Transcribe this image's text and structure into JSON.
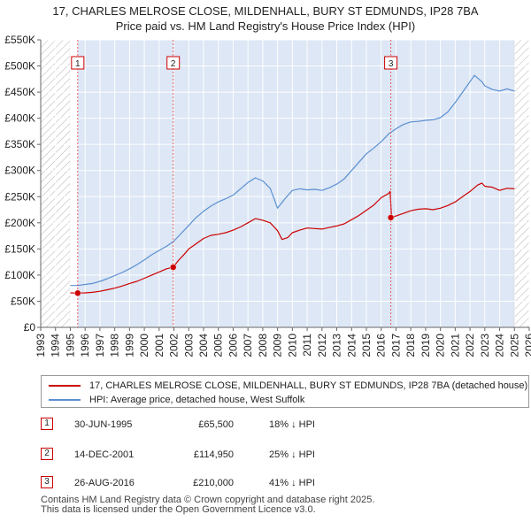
{
  "title": {
    "line1": "17, CHARLES MELROSE CLOSE, MILDENHALL, BURY ST EDMUNDS, IP28 7BA",
    "line2": "Price paid vs. HM Land Registry's House Price Index (HPI)"
  },
  "colors": {
    "property": "#cc0000",
    "hpi": "#5b8fd1",
    "shade": "#dde7f5",
    "hatch": "#aaaaaa",
    "grid": "#ffffff",
    "marker_line": "#e06060"
  },
  "chart_data": {
    "type": "line",
    "title": "17, CHARLES MELROSE CLOSE, MILDENHALL, BURY ST EDMUNDS, IP28 7BA — Price paid vs. HM Land Registry's House Price Index (HPI)",
    "xlabel": "",
    "ylabel": "",
    "xlim": [
      1993,
      2026
    ],
    "ylim": [
      0,
      550000
    ],
    "grid": true,
    "legend_position": "below",
    "x_ticks": [
      "1993",
      "1994",
      "1995",
      "1996",
      "1997",
      "1998",
      "1999",
      "2000",
      "2001",
      "2002",
      "2003",
      "2004",
      "2005",
      "2006",
      "2007",
      "2008",
      "2009",
      "2010",
      "2011",
      "2012",
      "2013",
      "2014",
      "2015",
      "2016",
      "2017",
      "2018",
      "2019",
      "2020",
      "2021",
      "2022",
      "2023",
      "2024",
      "2025",
      "2026"
    ],
    "y_ticks": [
      {
        "value": 0,
        "label": "£0"
      },
      {
        "value": 50000,
        "label": "£50K"
      },
      {
        "value": 100000,
        "label": "£100K"
      },
      {
        "value": 150000,
        "label": "£150K"
      },
      {
        "value": 200000,
        "label": "£200K"
      },
      {
        "value": 250000,
        "label": "£250K"
      },
      {
        "value": 300000,
        "label": "£300K"
      },
      {
        "value": 350000,
        "label": "£350K"
      },
      {
        "value": 400000,
        "label": "£400K"
      },
      {
        "value": 450000,
        "label": "£450K"
      },
      {
        "value": 500000,
        "label": "£500K"
      },
      {
        "value": 550000,
        "label": "£550K"
      }
    ],
    "hatched_ranges": [
      [
        1993,
        1995.0
      ],
      [
        2025.0,
        2026
      ]
    ],
    "shaded_range": [
      1995.5,
      2025.0
    ],
    "series": [
      {
        "name": "17, CHARLES MELROSE CLOSE, MILDENHALL, BURY ST EDMUNDS, IP28 7BA (detached house)",
        "color": "#cc0000",
        "x": [
          1995.0,
          1995.5,
          1996.0,
          1996.5,
          1997.0,
          1997.5,
          1998.0,
          1998.5,
          1999.0,
          1999.5,
          2000.0,
          2000.5,
          2001.0,
          2001.5,
          2001.95,
          2002.3,
          2002.7,
          2003.0,
          2003.5,
          2004.0,
          2004.5,
          2005.0,
          2005.5,
          2006.0,
          2006.5,
          2007.0,
          2007.5,
          2008.0,
          2008.5,
          2009.0,
          2009.3,
          2009.7,
          2010.0,
          2010.5,
          2011.0,
          2011.5,
          2012.0,
          2012.5,
          2013.0,
          2013.5,
          2014.0,
          2014.5,
          2015.0,
          2015.5,
          2016.0,
          2016.5,
          2016.6,
          2016.7,
          2017.0,
          2017.5,
          2018.0,
          2018.5,
          2019.0,
          2019.5,
          2020.0,
          2020.5,
          2021.0,
          2021.5,
          2022.0,
          2022.5,
          2022.8,
          2023.0,
          2023.5,
          2024.0,
          2024.5,
          2025.0
        ],
        "values": [
          66000,
          65500,
          66000,
          67000,
          69000,
          72000,
          75000,
          79000,
          84000,
          88000,
          94000,
          100000,
          106000,
          112000,
          114950,
          128000,
          140000,
          150000,
          160000,
          170000,
          176000,
          178000,
          181000,
          186000,
          192000,
          200000,
          208000,
          205000,
          200000,
          185000,
          168000,
          172000,
          181000,
          186000,
          190000,
          189000,
          188000,
          191000,
          194000,
          198000,
          206000,
          214000,
          224000,
          234000,
          248000,
          256000,
          260000,
          210000,
          213000,
          218000,
          223000,
          226000,
          227000,
          225000,
          228000,
          233000,
          240000,
          250000,
          260000,
          272000,
          276000,
          270000,
          268000,
          262000,
          266000,
          265000
        ],
        "line_width": 1.2
      },
      {
        "name": "HPI: Average price, detached house, West Suffolk",
        "color": "#5b8fd1",
        "x": [
          1995.0,
          1995.5,
          1996.0,
          1996.5,
          1997.0,
          1997.5,
          1998.0,
          1998.5,
          1999.0,
          1999.5,
          2000.0,
          2000.5,
          2001.0,
          2001.5,
          2002.0,
          2002.5,
          2003.0,
          2003.5,
          2004.0,
          2004.5,
          2005.0,
          2005.5,
          2006.0,
          2006.5,
          2007.0,
          2007.5,
          2008.0,
          2008.5,
          2009.0,
          2009.5,
          2010.0,
          2010.5,
          2011.0,
          2011.5,
          2012.0,
          2012.5,
          2013.0,
          2013.5,
          2014.0,
          2014.5,
          2015.0,
          2015.5,
          2016.0,
          2016.5,
          2017.0,
          2017.5,
          2018.0,
          2018.5,
          2019.0,
          2019.5,
          2020.0,
          2020.5,
          2021.0,
          2021.5,
          2022.0,
          2022.3,
          2022.8,
          2023.0,
          2023.5,
          2024.0,
          2024.5,
          2025.0
        ],
        "values": [
          80000,
          80000,
          82000,
          84000,
          88000,
          93000,
          99000,
          105000,
          112000,
          120000,
          129000,
          139000,
          147000,
          155000,
          165000,
          180000,
          195000,
          210000,
          222000,
          232000,
          240000,
          246000,
          253000,
          265000,
          277000,
          286000,
          280000,
          266000,
          228000,
          246000,
          262000,
          265000,
          263000,
          264000,
          262000,
          267000,
          274000,
          284000,
          300000,
          316000,
          332000,
          343000,
          355000,
          370000,
          380000,
          388000,
          393000,
          394000,
          396000,
          397000,
          401000,
          412000,
          430000,
          450000,
          470000,
          482000,
          470000,
          462000,
          455000,
          452000,
          456000,
          452000
        ],
        "line_width": 1.2
      }
    ],
    "sales": [
      {
        "label": "1",
        "x": 1995.5,
        "price": 65500
      },
      {
        "label": "2",
        "x": 2001.95,
        "price": 114950
      },
      {
        "label": "3",
        "x": 2016.65,
        "price": 210000
      }
    ]
  },
  "legend": {
    "property_label": "17, CHARLES MELROSE CLOSE, MILDENHALL, BURY ST EDMUNDS, IP28 7BA (detached house)",
    "hpi_label": "HPI: Average price, detached house, West Suffolk"
  },
  "sales_table": [
    {
      "num": "1",
      "date": "30-JUN-1995",
      "price": "£65,500",
      "hpi": "18% ↓ HPI"
    },
    {
      "num": "2",
      "date": "14-DEC-2001",
      "price": "£114,950",
      "hpi": "25% ↓ HPI"
    },
    {
      "num": "3",
      "date": "26-AUG-2016",
      "price": "£210,000",
      "hpi": "41% ↓ HPI"
    }
  ],
  "footer": {
    "line1": "Contains HM Land Registry data © Crown copyright and database right 2025.",
    "line2": "This data is licensed under the Open Government Licence v3.0."
  }
}
